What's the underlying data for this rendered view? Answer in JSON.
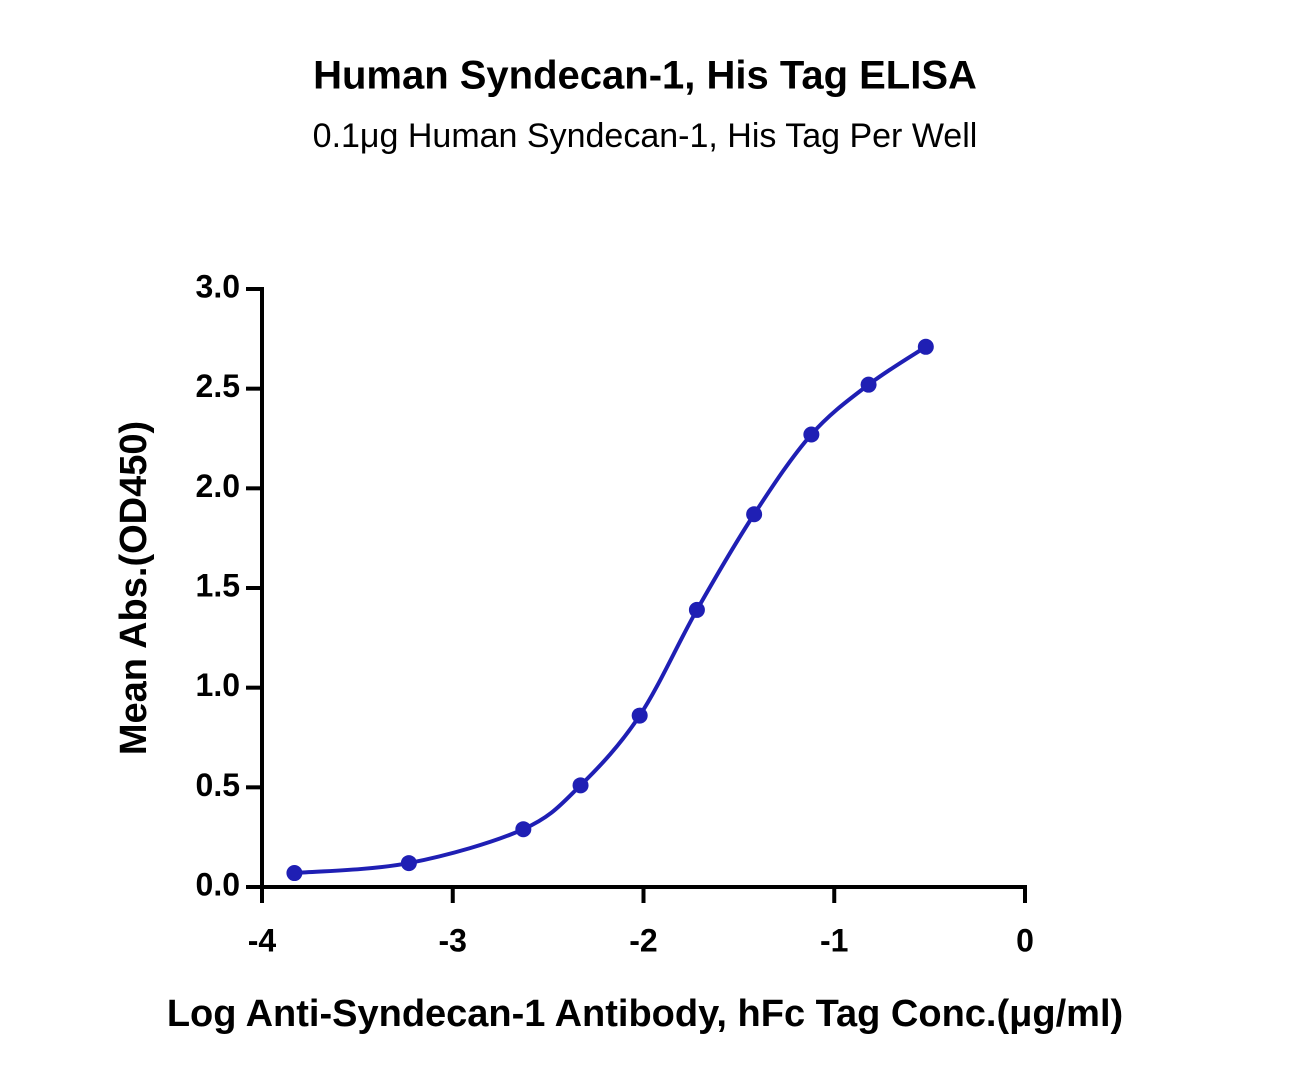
{
  "chart_data": {
    "type": "line",
    "title": "Human Syndecan-1, His Tag ELISA",
    "subtitle": "0.1μg Human Syndecan-1, His Tag Per Well",
    "x_label": "Log Anti-Syndecan-1 Antibody, hFc Tag Conc.(μg/ml)",
    "y_label": "Mean Abs.(OD450)",
    "x": [
      -3.83,
      -3.23,
      -2.63,
      -2.33,
      -2.02,
      -1.72,
      -1.42,
      -1.12,
      -0.82,
      -0.52
    ],
    "series": [
      {
        "color": "#1f1fb4",
        "values": [
          0.07,
          0.12,
          0.29,
          0.51,
          0.86,
          1.39,
          1.87,
          2.27,
          2.52,
          2.71
        ]
      }
    ],
    "xlim": [
      -4,
      0
    ],
    "xticks": [
      -4,
      -3,
      -2,
      -1,
      0
    ],
    "ylim": [
      0,
      3
    ],
    "yticks": [
      {
        "value": 0,
        "label": "0.0"
      },
      0.5,
      {
        "value": 1,
        "label": "1.0"
      },
      1.5,
      {
        "value": 2,
        "label": "2.0"
      },
      2.5,
      {
        "value": 3,
        "label": "3.0"
      }
    ],
    "grid": false
  }
}
